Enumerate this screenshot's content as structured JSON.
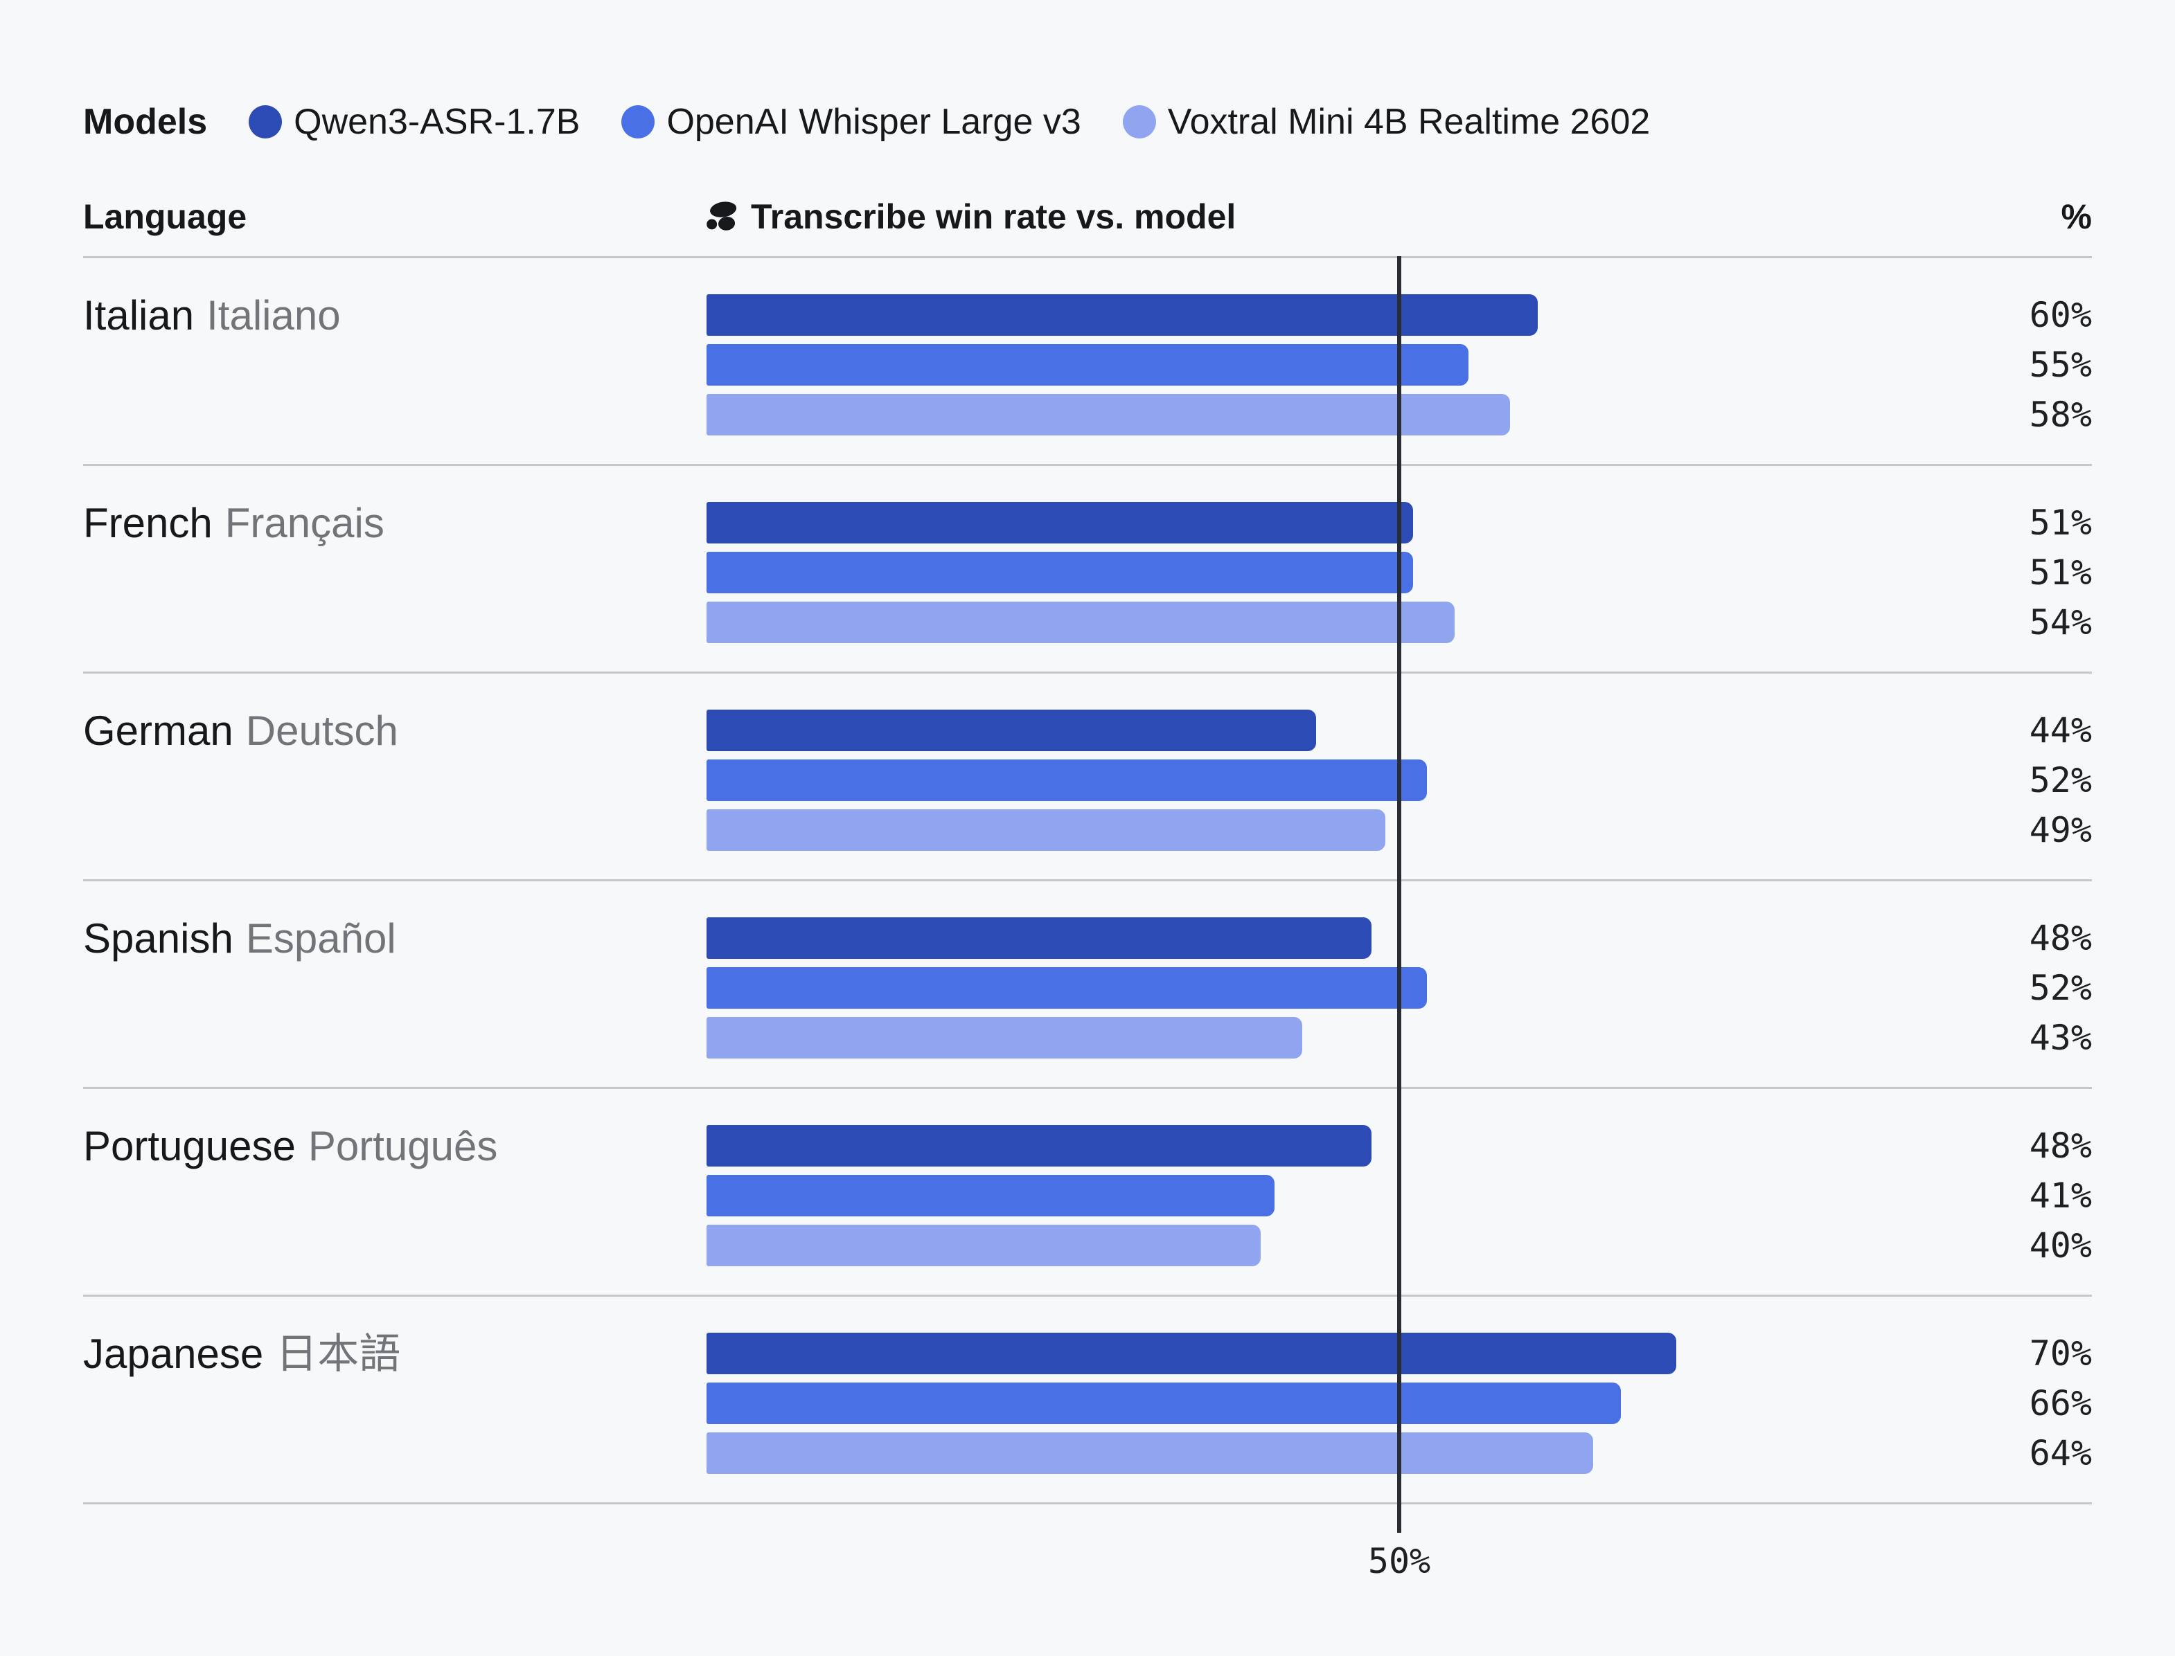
{
  "legend": {
    "title": "Models"
  },
  "header": {
    "language_label": "Language",
    "metric_label": "Transcribe win rate vs. model",
    "percent_label": "%"
  },
  "axis": {
    "reference_label": "50%",
    "reference_value": 50
  },
  "icons": {
    "metric_logo": "scribe-logo"
  },
  "colors": {
    "background": "#F7F8F9",
    "divider": "#C5C7CA",
    "reference_line": "#292C33",
    "text_primary": "#17181B",
    "text_secondary": "#72747A"
  },
  "chart_data": {
    "type": "bar",
    "orientation": "horizontal",
    "title": "Transcribe win rate vs. model",
    "value_unit": "%",
    "x_range": [
      0,
      95
    ],
    "reference_line": 50,
    "grid": "row-dividers-only",
    "legend_position": "top",
    "categories": [
      {
        "en": "Italian",
        "native": "Italiano"
      },
      {
        "en": "French",
        "native": "Français"
      },
      {
        "en": "German",
        "native": "Deutsch"
      },
      {
        "en": "Spanish",
        "native": "Español"
      },
      {
        "en": "Portuguese",
        "native": "Português"
      },
      {
        "en": "Japanese",
        "native": "日本語"
      }
    ],
    "series": [
      {
        "name": "Qwen3-ASR-1.7B",
        "color": "#2D4BB4",
        "values": [
          60,
          51,
          44,
          48,
          48,
          70
        ]
      },
      {
        "name": "OpenAI Whisper Large v3",
        "color": "#4A70E6",
        "values": [
          55,
          51,
          52,
          52,
          41,
          66
        ]
      },
      {
        "name": "Voxtral Mini 4B Realtime 2602",
        "color": "#91A4F0",
        "values": [
          58,
          54,
          49,
          43,
          40,
          64
        ]
      }
    ]
  }
}
